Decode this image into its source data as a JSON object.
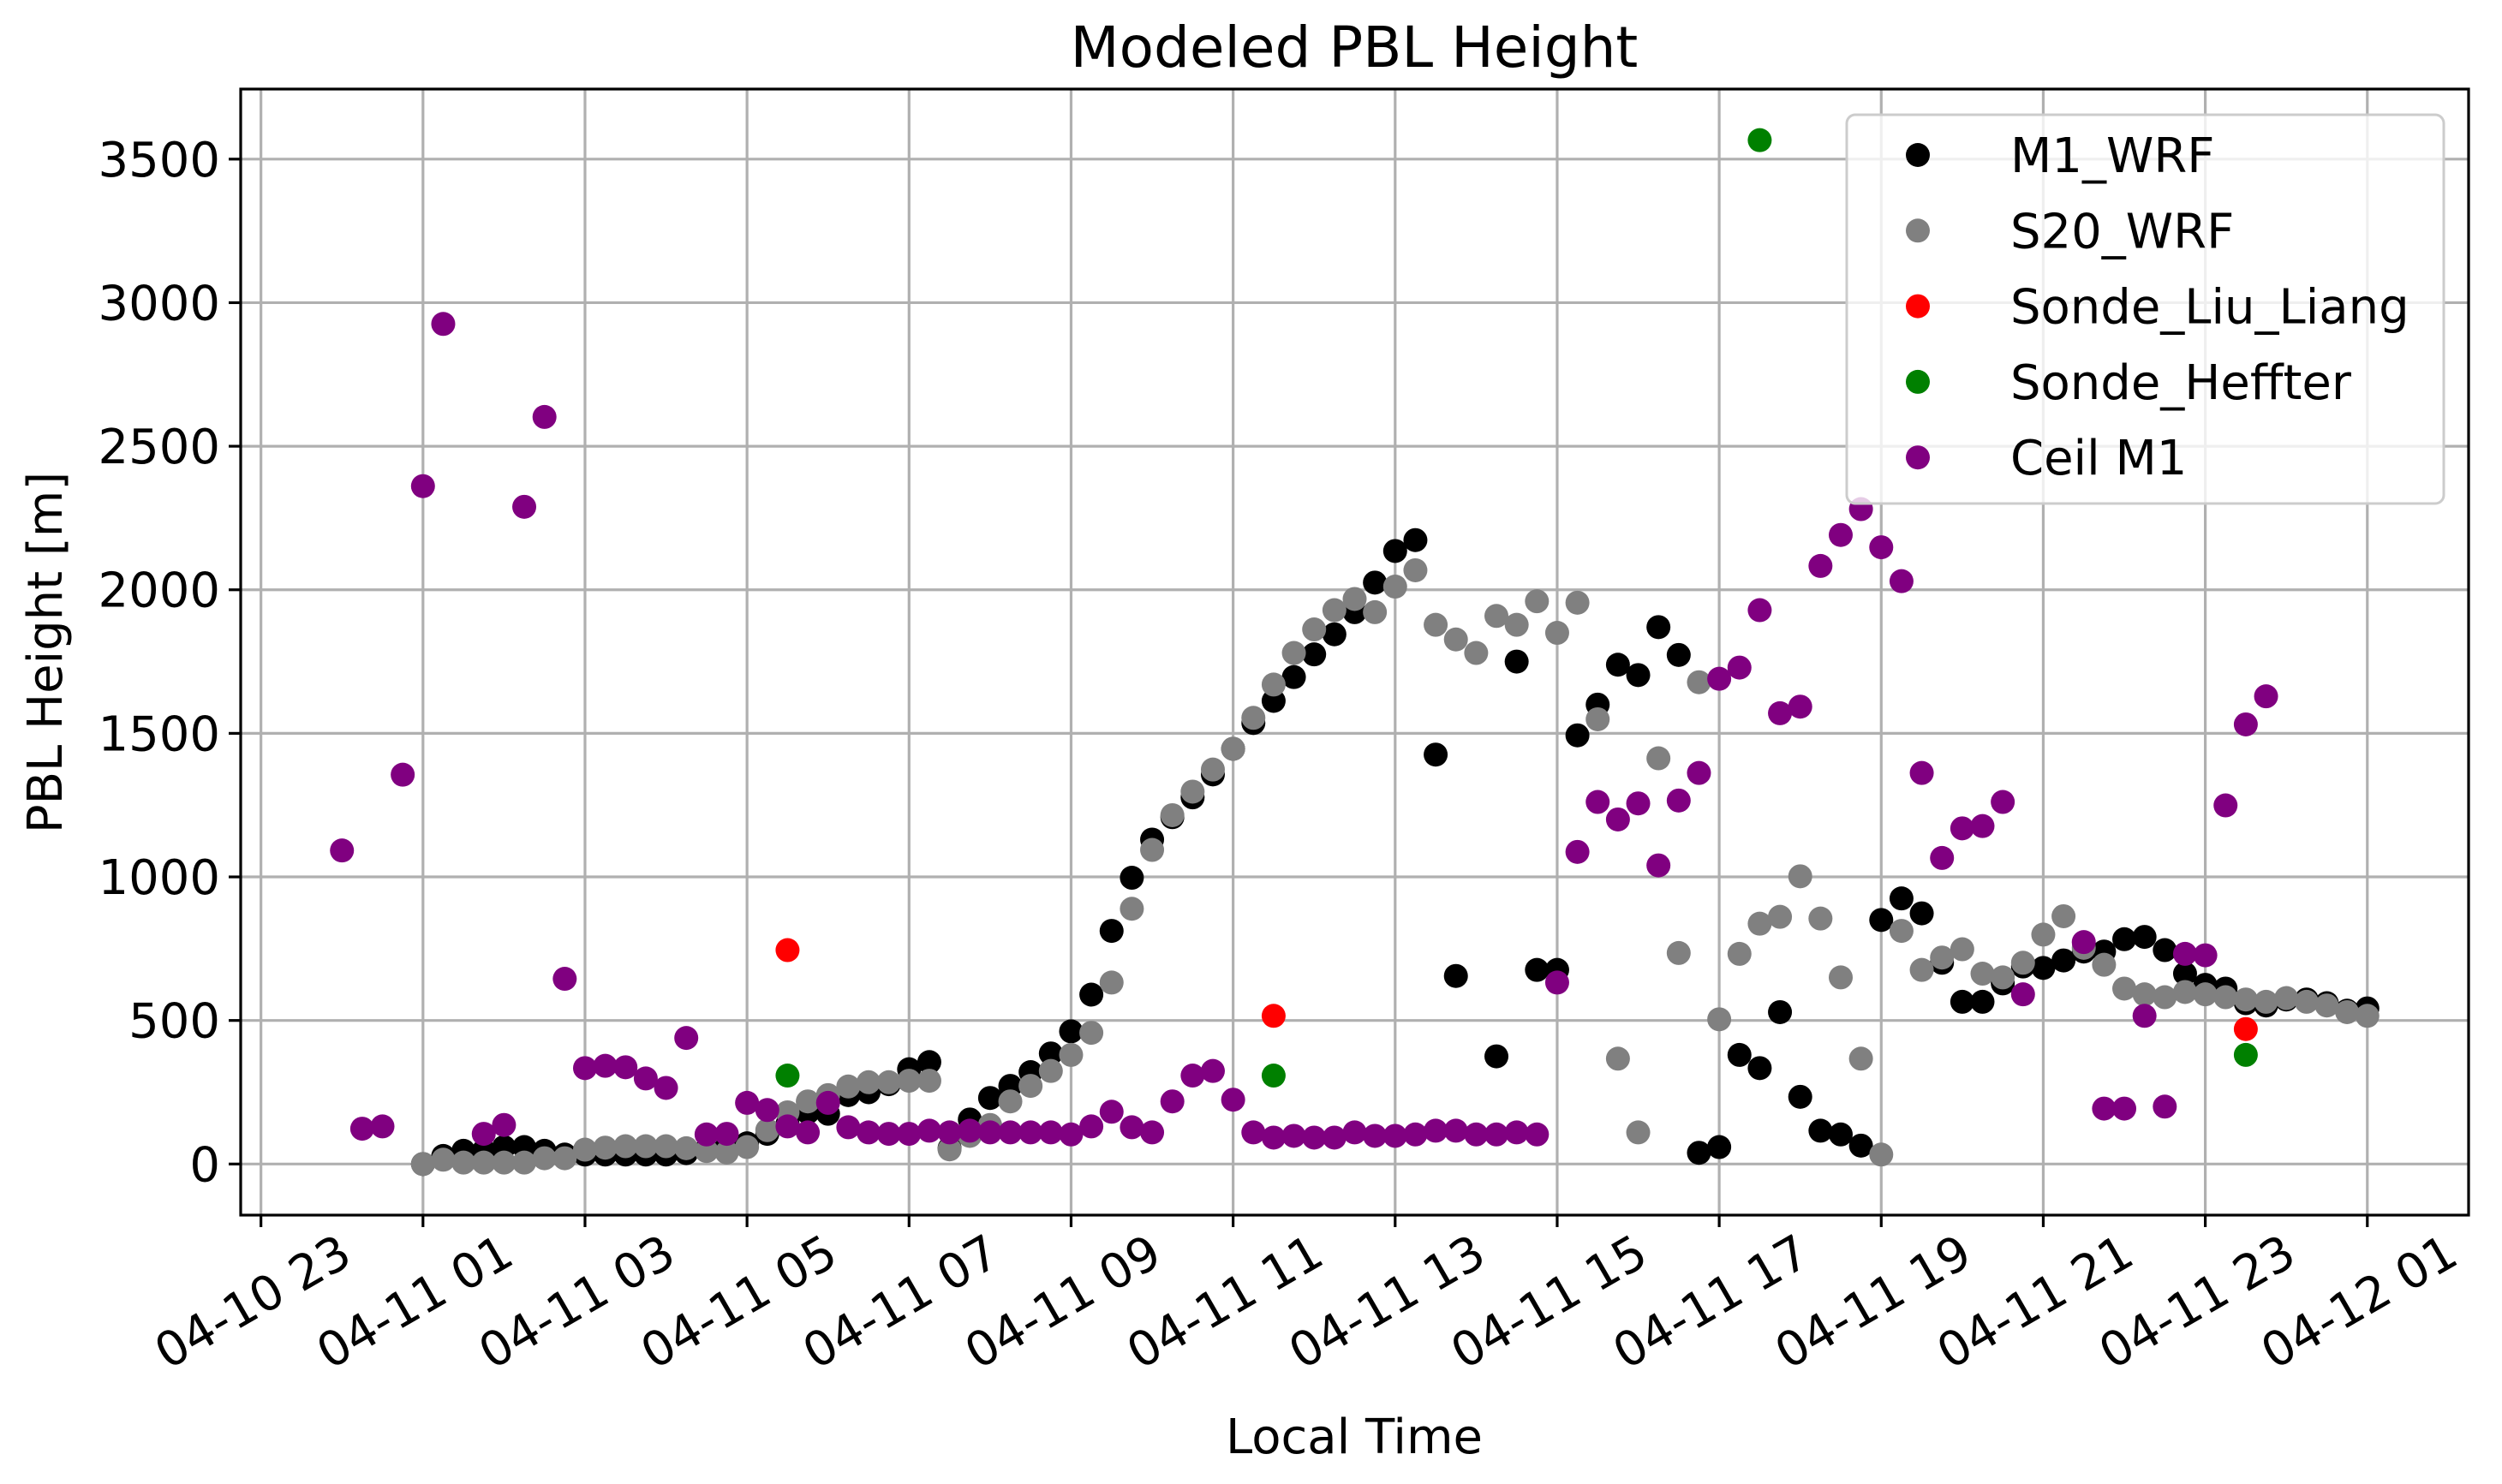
{
  "chart_data": {
    "type": "scatter",
    "title": "Modeled PBL Height",
    "xlabel": "Local Time",
    "ylabel": "PBL Height [m]",
    "xlim": [
      "04-10 22:45",
      "04-12 02:15"
    ],
    "ylim": [
      -178,
      3744
    ],
    "grid": true,
    "legend_position": "top-right",
    "x_ticks": [
      "04-10 23",
      "04-11 01",
      "04-11 03",
      "04-11 05",
      "04-11 07",
      "04-11 09",
      "04-11 11",
      "04-11 13",
      "04-11 15",
      "04-11 17",
      "04-11 19",
      "04-11 21",
      "04-11 23",
      "04-12 01"
    ],
    "y_ticks": [
      0,
      500,
      1000,
      1500,
      2000,
      2500,
      3000,
      3500
    ],
    "wrf_x": [
      "04-11 01:00",
      "04-11 01:15",
      "04-11 01:30",
      "04-11 01:45",
      "04-11 02:00",
      "04-11 02:15",
      "04-11 02:30",
      "04-11 02:45",
      "04-11 03:00",
      "04-11 03:15",
      "04-11 03:30",
      "04-11 03:45",
      "04-11 04:00",
      "04-11 04:15",
      "04-11 04:30",
      "04-11 04:45",
      "04-11 05:00",
      "04-11 05:15",
      "04-11 05:30",
      "04-11 05:45",
      "04-11 06:00",
      "04-11 06:15",
      "04-11 06:30",
      "04-11 06:45",
      "04-11 07:00",
      "04-11 07:15",
      "04-11 07:30",
      "04-11 07:45",
      "04-11 08:00",
      "04-11 08:15",
      "04-11 08:30",
      "04-11 08:45",
      "04-11 09:00",
      "04-11 09:15",
      "04-11 09:30",
      "04-11 09:45",
      "04-11 10:00",
      "04-11 10:15",
      "04-11 10:30",
      "04-11 10:45",
      "04-11 11:00",
      "04-11 11:15",
      "04-11 11:30",
      "04-11 11:45",
      "04-11 12:00",
      "04-11 12:15",
      "04-11 12:30",
      "04-11 12:45",
      "04-11 13:00",
      "04-11 13:15",
      "04-11 13:30",
      "04-11 13:45",
      "04-11 14:00",
      "04-11 14:15",
      "04-11 14:30",
      "04-11 14:45",
      "04-11 15:00",
      "04-11 15:15",
      "04-11 15:30",
      "04-11 15:45",
      "04-11 16:00",
      "04-11 16:15",
      "04-11 16:30",
      "04-11 16:45",
      "04-11 17:00",
      "04-11 17:15",
      "04-11 17:30",
      "04-11 17:45",
      "04-11 18:00",
      "04-11 18:15",
      "04-11 18:30",
      "04-11 18:45",
      "04-11 19:00",
      "04-11 19:15",
      "04-11 19:30",
      "04-11 19:45",
      "04-11 20:00",
      "04-11 20:15",
      "04-11 20:30",
      "04-11 20:45",
      "04-11 21:00",
      "04-11 21:15",
      "04-11 21:30",
      "04-11 21:45",
      "04-11 22:00",
      "04-11 22:15",
      "04-11 22:30",
      "04-11 22:45",
      "04-11 23:00",
      "04-11 23:15",
      "04-11 23:30",
      "04-11 23:45",
      "04-12 00:00",
      "04-12 00:15",
      "04-12 00:30",
      "04-12 00:45",
      "04-12 01:00"
    ],
    "series": [
      {
        "name": "M1_WRF",
        "color": "#000000",
        "x_ref": "wrf_x",
        "y": [
          0,
          28,
          46,
          46,
          59,
          59,
          46,
          33,
          33,
          33,
          33,
          33,
          33,
          38,
          50,
          59,
          72,
          105,
          140,
          180,
          175,
          240,
          250,
          278,
          330,
          355,
          55,
          155,
          230,
          272,
          320,
          385,
          462,
          590,
          812,
          997,
          1130,
          1208,
          1277,
          1357,
          1446,
          1536,
          1613,
          1696,
          1775,
          1845,
          1922,
          2025,
          2135,
          2173,
          1426,
          655,
          null,
          375,
          1750,
          676,
          676,
          1493,
          1600,
          1739,
          1703,
          1870,
          1773,
          39,
          59,
          380,
          334,
          529,
          234,
          116,
          103,
          64,
          850,
          925,
          873,
          701,
          565,
          565,
          629,
          688,
          683,
          709,
          740,
          740,
          783,
          791,
          745,
          663,
          624,
          611,
          560,
          552,
          573,
          573,
          560,
          534,
          542
        ]
      },
      {
        "name": "S20_WRF",
        "color": "#808080",
        "x_ref": "wrf_x",
        "y": [
          0,
          15,
          5,
          5,
          5,
          5,
          20,
          20,
          50,
          57,
          62,
          62,
          62,
          55,
          45,
          40,
          59,
          118,
          180,
          218,
          240,
          270,
          285,
          285,
          290,
          290,
          51,
          98,
          136,
          218,
          272,
          324,
          380,
          457,
          632,
          889,
          1094,
          1215,
          1297,
          1374,
          1446,
          1554,
          1670,
          1780,
          1862,
          1929,
          1968,
          1922,
          2011,
          2068,
          1878,
          1827,
          1780,
          1909,
          1878,
          1960,
          1850,
          1955,
          1549,
          367,
          110,
          1413,
          735,
          1678,
          504,
          732,
          837,
          861,
          1002,
          855,
          650,
          367,
          33,
          812,
          676,
          719,
          748,
          663,
          650,
          701,
          799,
          863,
          753,
          694,
          611,
          591,
          581,
          599,
          591,
          581,
          573,
          565,
          578,
          565,
          552,
          529,
          516
        ]
      },
      {
        "name": "Sonde_Liu_Liang",
        "color": "#ff0000",
        "x": [
          "04-11 05:30",
          "04-11 11:30",
          "04-11 23:30"
        ],
        "y": [
          745,
          516,
          470
        ]
      },
      {
        "name": "Sonde_Heffter",
        "color": "#008000",
        "x": [
          "04-11 05:30",
          "04-11 11:30",
          "04-11 17:30",
          "04-11 23:30"
        ],
        "y": [
          308,
          308,
          3566,
          380
        ]
      },
      {
        "name": "Ceil M1",
        "color": "#800080",
        "x": [
          "04-11 00:00",
          "04-11 00:15",
          "04-11 00:30",
          "04-11 00:45",
          "04-11 01:00",
          "04-11 01:15",
          "04-11 01:45",
          "04-11 02:00",
          "04-11 02:15",
          "04-11 02:30",
          "04-11 02:45",
          "04-11 03:00",
          "04-11 03:15",
          "04-11 03:30",
          "04-11 03:45",
          "04-11 04:00",
          "04-11 04:15",
          "04-11 04:30",
          "04-11 04:45",
          "04-11 05:00",
          "04-11 05:15",
          "04-11 05:30",
          "04-11 05:45",
          "04-11 06:00",
          "04-11 06:15",
          "04-11 06:30",
          "04-11 06:45",
          "04-11 07:00",
          "04-11 07:15",
          "04-11 07:30",
          "04-11 07:45",
          "04-11 08:00",
          "04-11 08:15",
          "04-11 08:30",
          "04-11 08:45",
          "04-11 09:00",
          "04-11 09:15",
          "04-11 09:30",
          "04-11 09:45",
          "04-11 10:00",
          "04-11 10:15",
          "04-11 10:30",
          "04-11 10:45",
          "04-11 11:00",
          "04-11 11:15",
          "04-11 11:30",
          "04-11 11:45",
          "04-11 12:00",
          "04-11 12:15",
          "04-11 12:30",
          "04-11 12:45",
          "04-11 13:00",
          "04-11 13:15",
          "04-11 13:30",
          "04-11 13:45",
          "04-11 14:00",
          "04-11 14:15",
          "04-11 14:30",
          "04-11 14:45",
          "04-11 15:00",
          "04-11 15:15",
          "04-11 15:30",
          "04-11 15:45",
          "04-11 16:00",
          "04-11 16:15",
          "04-11 16:30",
          "04-11 16:45",
          "04-11 17:00",
          "04-11 17:15",
          "04-11 17:30",
          "04-11 17:45",
          "04-11 18:00",
          "04-11 18:15",
          "04-11 18:30",
          "04-11 18:45",
          "04-11 19:00",
          "04-11 19:15",
          "04-11 19:30",
          "04-11 19:45",
          "04-11 20:00",
          "04-11 20:15",
          "04-11 20:30",
          "04-11 20:45",
          "04-11 21:30",
          "04-11 21:45",
          "04-11 22:00",
          "04-11 22:15",
          "04-11 22:30",
          "04-11 22:45",
          "04-11 23:00",
          "04-11 23:15",
          "04-11 23:30",
          "04-11 23:45"
        ],
        "y": [
          1092,
          123,
          131,
          1356,
          2361,
          2926,
          105,
          136,
          2289,
          2602,
          645,
          334,
          342,
          337,
          298,
          265,
          439,
          103,
          105,
          213,
          188,
          131,
          110,
          213,
          128,
          110,
          105,
          105,
          116,
          110,
          116,
          110,
          110,
          110,
          110,
          103,
          131,
          182,
          128,
          110,
          218,
          308,
          324,
          224,
          110,
          92,
          98,
          92,
          92,
          110,
          98,
          98,
          103,
          116,
          116,
          103,
          103,
          110,
          103,
          632,
          1087,
          1261,
          1200,
          1256,
          1040,
          1266,
          1362,
          1690,
          1729,
          1929,
          1570,
          1593,
          2083,
          2191,
          2281,
          2148,
          2030,
          1362,
          1066,
          1169,
          1177,
          1261,
          591,
          773,
          193,
          193,
          516,
          200,
          732,
          727,
          1249,
          1531,
          1629
        ]
      }
    ]
  }
}
